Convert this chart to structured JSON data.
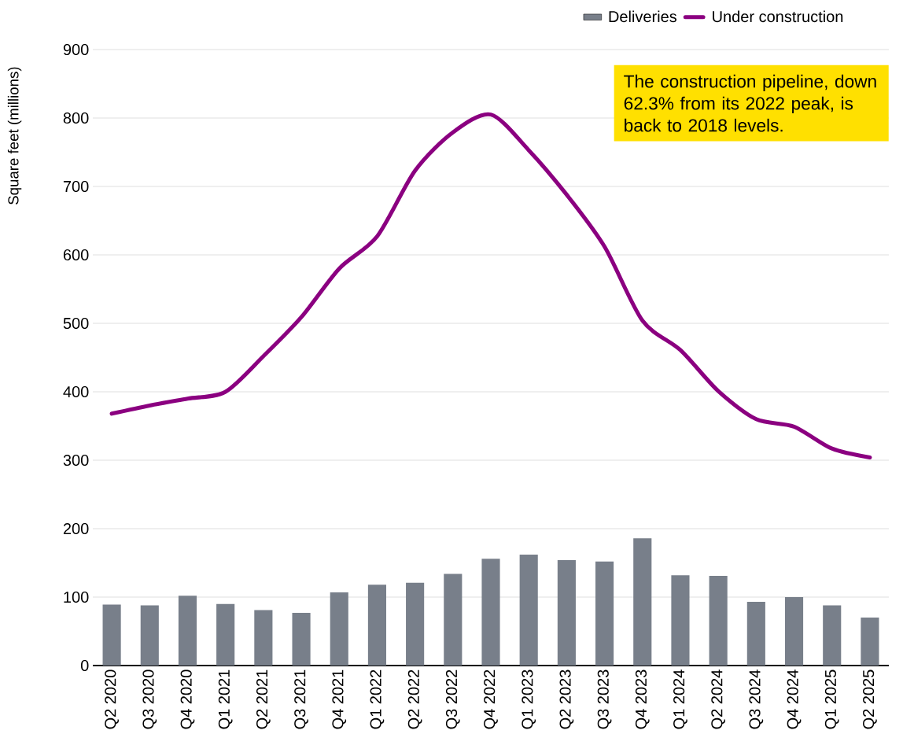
{
  "chart_data": {
    "type": "bar",
    "ylabel": "Square feet (millions)",
    "categories": [
      "Q2 2020",
      "Q3 2020",
      "Q4 2020",
      "Q1 2021",
      "Q2 2021",
      "Q3 2021",
      "Q4 2021",
      "Q1 2022",
      "Q2 2022",
      "Q3 2022",
      "Q4 2022",
      "Q1 2023",
      "Q2 2023",
      "Q3 2023",
      "Q4 2023",
      "Q1 2024",
      "Q2 2024",
      "Q3 2024",
      "Q4 2024",
      "Q1 2025",
      "Q2 2025"
    ],
    "series": [
      {
        "name": "Deliveries",
        "color": "#787f8a",
        "values": [
          89,
          88,
          102,
          90,
          81,
          77,
          107,
          118,
          121,
          134,
          156,
          162,
          154,
          152,
          186,
          132,
          131,
          93,
          100,
          88,
          70
        ]
      },
      {
        "name": "Under construction",
        "type": "line",
        "color": "#8b0080",
        "values": [
          368,
          380,
          390,
          400,
          452,
          509,
          580,
          627,
          723,
          779,
          805,
          753,
          688,
          612,
          504,
          461,
          401,
          360,
          349,
          317,
          304
        ]
      }
    ],
    "ylim": [
      0,
      900
    ],
    "yticks": [
      0,
      100,
      200,
      300,
      400,
      500,
      600,
      700,
      800,
      900
    ],
    "grid": "y",
    "legend": "top right",
    "marker": "none",
    "annotations": [
      "The construction pipeline, down 62.3% from its 2022 peak, is back to 2018 levels."
    ]
  }
}
